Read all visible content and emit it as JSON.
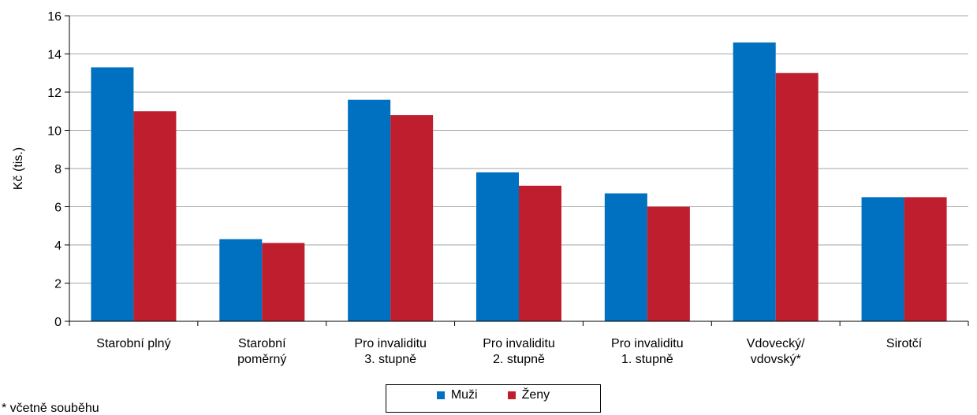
{
  "chart_data": {
    "type": "bar",
    "ylabel": "Kč (tis.)",
    "ylim": [
      0,
      16
    ],
    "yticks": [
      0,
      2,
      4,
      6,
      8,
      10,
      12,
      14,
      16
    ],
    "grid": true,
    "legend_position": "bottom",
    "categories": [
      [
        "Starobní plný"
      ],
      [
        "Starobní",
        "poměrný"
      ],
      [
        "Pro invaliditu",
        "3. stupně"
      ],
      [
        "Pro invaliditu",
        "2. stupně"
      ],
      [
        "Pro invaliditu",
        "1. stupně"
      ],
      [
        "Vdovecký/",
        "vdovský*"
      ],
      [
        "Sirotčí"
      ]
    ],
    "series": [
      {
        "name": "Muži",
        "color": "#0070C0",
        "values": [
          13.3,
          4.3,
          11.6,
          7.8,
          6.7,
          14.6,
          6.5
        ]
      },
      {
        "name": "Ženy",
        "color": "#BE1E2D",
        "values": [
          11.0,
          4.1,
          10.8,
          7.1,
          6.0,
          13.0,
          6.5
        ]
      }
    ]
  },
  "footnote": "* včetně souběhu"
}
